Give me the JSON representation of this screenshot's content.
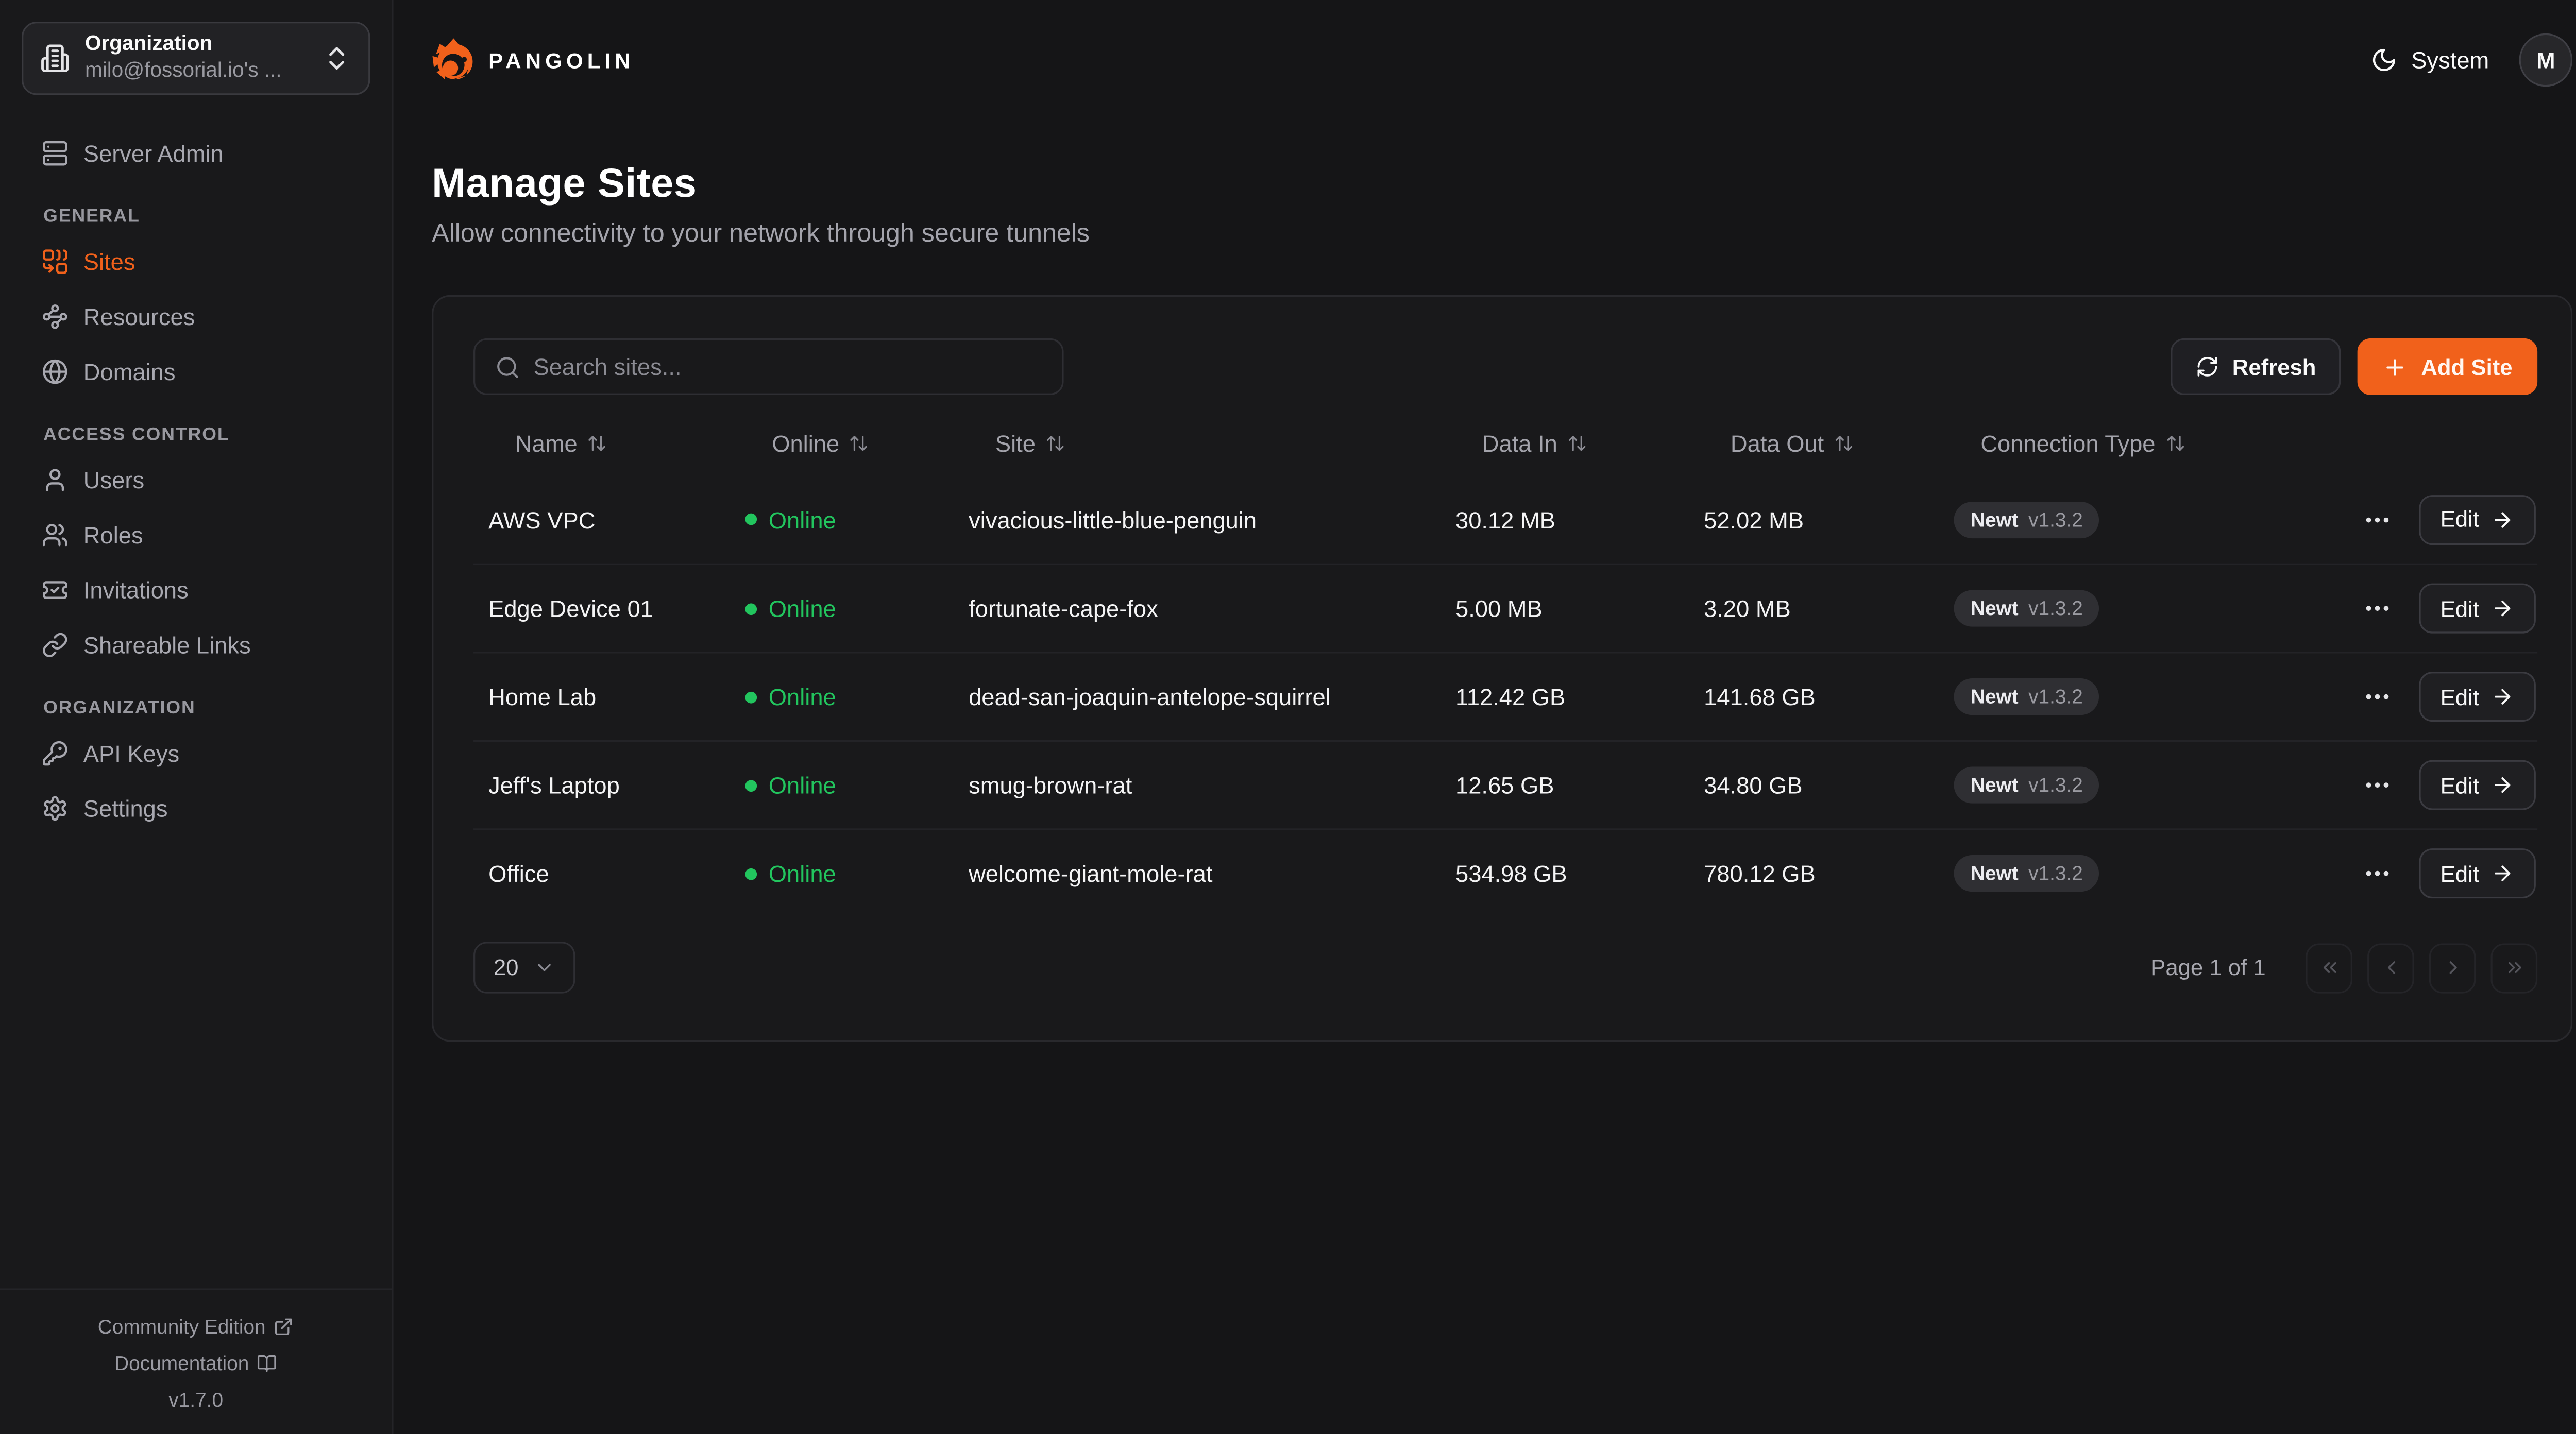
{
  "brand": {
    "name": "PANGOLIN",
    "logo_icon": "pangolin-logo-icon"
  },
  "org_selector": {
    "label": "Organization",
    "value": "milo@fossorial.io's ...",
    "icon": "building-icon",
    "chevrons_icon": "chevrons-up-down-icon"
  },
  "header": {
    "theme_label": "System",
    "theme_icon": "moon-icon",
    "avatar_initial": "M"
  },
  "sidebar": {
    "top_item": {
      "label": "Server Admin",
      "icon": "server-icon"
    },
    "sections": [
      {
        "label": "GENERAL",
        "items": [
          {
            "label": "Sites",
            "icon": "combine-icon",
            "active": true
          },
          {
            "label": "Resources",
            "icon": "waypoints-icon",
            "active": false
          },
          {
            "label": "Domains",
            "icon": "globe-icon",
            "active": false
          }
        ]
      },
      {
        "label": "ACCESS CONTROL",
        "items": [
          {
            "label": "Users",
            "icon": "user-icon",
            "active": false
          },
          {
            "label": "Roles",
            "icon": "users-icon",
            "active": false
          },
          {
            "label": "Invitations",
            "icon": "ticket-check-icon",
            "active": false
          },
          {
            "label": "Shareable Links",
            "icon": "link-icon",
            "active": false
          }
        ]
      },
      {
        "label": "ORGANIZATION",
        "items": [
          {
            "label": "API Keys",
            "icon": "key-icon",
            "active": false
          },
          {
            "label": "Settings",
            "icon": "gear-icon",
            "active": false
          }
        ]
      }
    ],
    "footer": {
      "community_label": "Community Edition",
      "community_icon": "external-link-icon",
      "docs_label": "Documentation",
      "docs_icon": "book-open-icon",
      "version": "v1.7.0"
    }
  },
  "page": {
    "title": "Manage Sites",
    "subtitle": "Allow connectivity to your network through secure tunnels"
  },
  "toolbar": {
    "search_placeholder": "Search sites...",
    "refresh_label": "Refresh",
    "add_label": "Add Site"
  },
  "table": {
    "columns": [
      {
        "label": "Name",
        "sortable": true
      },
      {
        "label": "Online",
        "sortable": true
      },
      {
        "label": "Site",
        "sortable": true
      },
      {
        "label": "Data In",
        "sortable": true
      },
      {
        "label": "Data Out",
        "sortable": true
      },
      {
        "label": "Connection Type",
        "sortable": true
      }
    ],
    "row_action_label": "Edit",
    "rows": [
      {
        "name": "AWS VPC",
        "status": "Online",
        "site": "vivacious-little-blue-penguin",
        "data_in": "30.12 MB",
        "data_out": "52.02 MB",
        "conn_type": "Newt",
        "conn_version": "v1.3.2"
      },
      {
        "name": "Edge Device 01",
        "status": "Online",
        "site": "fortunate-cape-fox",
        "data_in": "5.00 MB",
        "data_out": "3.20 MB",
        "conn_type": "Newt",
        "conn_version": "v1.3.2"
      },
      {
        "name": "Home Lab",
        "status": "Online",
        "site": "dead-san-joaquin-antelope-squirrel",
        "data_in": "112.42 GB",
        "data_out": "141.68 GB",
        "conn_type": "Newt",
        "conn_version": "v1.3.2"
      },
      {
        "name": "Jeff's Laptop",
        "status": "Online",
        "site": "smug-brown-rat",
        "data_in": "12.65 GB",
        "data_out": "34.80 GB",
        "conn_type": "Newt",
        "conn_version": "v1.3.2"
      },
      {
        "name": "Office",
        "status": "Online",
        "site": "welcome-giant-mole-rat",
        "data_in": "534.98 GB",
        "data_out": "780.12 GB",
        "conn_type": "Newt",
        "conn_version": "v1.3.2"
      }
    ]
  },
  "pagination": {
    "page_size": "20",
    "page_info": "Page 1 of 1"
  },
  "colors": {
    "accent": "#F1611B",
    "online_green": "#22c55e",
    "page_bg": "#151517",
    "panel_bg": "#19191b"
  }
}
